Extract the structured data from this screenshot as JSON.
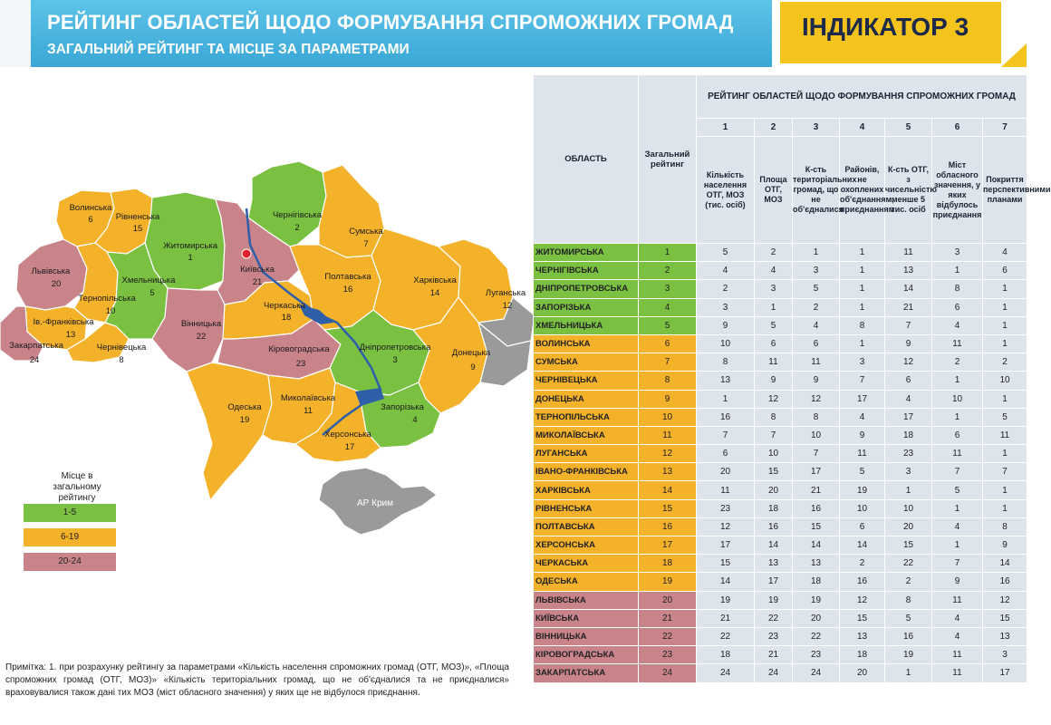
{
  "header": {
    "title": "РЕЙТИНГ ОБЛАСТЕЙ ЩОДО ФОРМУВАННЯ СПРОМОЖНИХ ГРОМАД",
    "subtitle": "ЗАГАЛЬНИЙ РЕЙТИНГ ТА МІСЦЕ ЗА ПАРАМЕТРАМИ",
    "indicator": "ІНДИКАТОР 3"
  },
  "colors": {
    "green": "#7ac142",
    "orange": "#f4b12a",
    "pink": "#c9848a",
    "grey": "#9a9a9a",
    "header_blue": "#3aa7d6",
    "indicator_yellow": "#f4c31c",
    "table_bg": "#dde4ec"
  },
  "map": {
    "regions": [
      {
        "name": "Волинська",
        "rank": "6"
      },
      {
        "name": "Рівненська",
        "rank": "15"
      },
      {
        "name": "Житомирська",
        "rank": "1"
      },
      {
        "name": "Київська",
        "rank": "21"
      },
      {
        "name": "Чернігівська",
        "rank": "2"
      },
      {
        "name": "Сумська",
        "rank": "7"
      },
      {
        "name": "Львівська",
        "rank": "20"
      },
      {
        "name": "Хмельницька",
        "rank": "5"
      },
      {
        "name": "Тернопільська",
        "rank": "10"
      },
      {
        "name": "Ів.-Франківська",
        "rank": "13"
      },
      {
        "name": "Закарпатська",
        "rank": "24"
      },
      {
        "name": "Чернівецька",
        "rank": "8"
      },
      {
        "name": "Вінницька",
        "rank": "22"
      },
      {
        "name": "Черкаська",
        "rank": "18"
      },
      {
        "name": "Полтавська",
        "rank": "16"
      },
      {
        "name": "Харківська",
        "rank": "14"
      },
      {
        "name": "Луганська",
        "rank": "12"
      },
      {
        "name": "Кіровоградська",
        "rank": "23"
      },
      {
        "name": "Дніпропетровська",
        "rank": "3"
      },
      {
        "name": "Донецька",
        "rank": "9"
      },
      {
        "name": "Одеська",
        "rank": "19"
      },
      {
        "name": "Миколаївська",
        "rank": "11"
      },
      {
        "name": "Запорізька",
        "rank": "4"
      },
      {
        "name": "Херсонська",
        "rank": "17"
      },
      {
        "name": "АР Крим",
        "rank": ""
      }
    ],
    "legend": {
      "title": "Місце в загальному рейтингу",
      "items": [
        {
          "label": "1-5",
          "color": "#7ac142"
        },
        {
          "label": "6-19",
          "color": "#f4b12a"
        },
        {
          "label": "20-24",
          "color": "#c9848a"
        }
      ]
    }
  },
  "note": "Примітка: 1. при розрахунку рейтингу за параметрами «Кількість населення спроможних громад (ОТГ, МОЗ)», «Площа спроможних громад (ОТГ, МОЗ)» «Кількість територіальних громад, що не об'єдналися та не приєдналися» враховувалися також дані тих МОЗ (міст обласного значення) у яких ще не відбулося приєднання.",
  "table": {
    "h_oblast": "ОБЛАСТЬ",
    "h_total": "Загальний рейтинг",
    "h_group": "РЕЙТИНГ ОБЛАСТЕЙ ЩОДО ФОРМУВАННЯ СПРОМОЖНИХ ГРОМАД",
    "col_nums": [
      "1",
      "2",
      "3",
      "4",
      "5",
      "6",
      "7"
    ],
    "col_heads": [
      "Кількість населення ОТГ, МОЗ (тис. осіб)",
      "Площа ОТГ, МОЗ",
      "К-сть територіальних громад, що не об'єдналися",
      "Районів, не охоплених об'єднанням, приєднанням",
      "К-сть ОТГ, з чисельністю менше 5 тис. осіб",
      "Міст обласного значення, у яких відбулось приєднання",
      "Покриття перспективними планами"
    ],
    "rows": [
      {
        "name": "ЖИТОМИРСЬКА",
        "total": "1",
        "v": [
          "5",
          "2",
          "1",
          "1",
          "11",
          "3",
          "4"
        ]
      },
      {
        "name": "ЧЕРНІГІВСЬКА",
        "total": "2",
        "v": [
          "4",
          "4",
          "3",
          "1",
          "13",
          "1",
          "6"
        ]
      },
      {
        "name": "ДНІПРОПЕТРОВСЬКА",
        "total": "3",
        "v": [
          "2",
          "3",
          "5",
          "1",
          "14",
          "8",
          "1"
        ]
      },
      {
        "name": "ЗАПОРІЗЬКА",
        "total": "4",
        "v": [
          "3",
          "1",
          "2",
          "1",
          "21",
          "6",
          "1"
        ]
      },
      {
        "name": "ХМЕЛЬНИЦЬКА",
        "total": "5",
        "v": [
          "9",
          "5",
          "4",
          "8",
          "7",
          "4",
          "1"
        ]
      },
      {
        "name": "ВОЛИНСЬКА",
        "total": "6",
        "v": [
          "10",
          "6",
          "6",
          "1",
          "9",
          "11",
          "1"
        ]
      },
      {
        "name": "СУМСЬКА",
        "total": "7",
        "v": [
          "8",
          "11",
          "11",
          "3",
          "12",
          "2",
          "2"
        ]
      },
      {
        "name": "ЧЕРНІВЕЦЬКА",
        "total": "8",
        "v": [
          "13",
          "9",
          "9",
          "7",
          "6",
          "1",
          "10"
        ]
      },
      {
        "name": "ДОНЕЦЬКА",
        "total": "9",
        "v": [
          "1",
          "12",
          "12",
          "17",
          "4",
          "10",
          "1"
        ]
      },
      {
        "name": "ТЕРНОПІЛЬСЬКА",
        "total": "10",
        "v": [
          "16",
          "8",
          "8",
          "4",
          "17",
          "1",
          "5"
        ]
      },
      {
        "name": "МИКОЛАЇВСЬКА",
        "total": "11",
        "v": [
          "7",
          "7",
          "10",
          "9",
          "18",
          "6",
          "11"
        ]
      },
      {
        "name": "ЛУГАНСЬКА",
        "total": "12",
        "v": [
          "6",
          "10",
          "7",
          "11",
          "23",
          "11",
          "1"
        ]
      },
      {
        "name": "ІВАНО-ФРАНКІВСЬКА",
        "total": "13",
        "v": [
          "20",
          "15",
          "17",
          "5",
          "3",
          "7",
          "7"
        ]
      },
      {
        "name": "ХАРКІВСЬКА",
        "total": "14",
        "v": [
          "11",
          "20",
          "21",
          "19",
          "1",
          "5",
          "1"
        ]
      },
      {
        "name": "РІВНЕНСЬКА",
        "total": "15",
        "v": [
          "23",
          "18",
          "16",
          "10",
          "10",
          "1",
          "1"
        ]
      },
      {
        "name": "ПОЛТАВСЬКА",
        "total": "16",
        "v": [
          "12",
          "16",
          "15",
          "6",
          "20",
          "4",
          "8"
        ]
      },
      {
        "name": "ХЕРСОНСЬКА",
        "total": "17",
        "v": [
          "17",
          "14",
          "14",
          "14",
          "15",
          "1",
          "9"
        ]
      },
      {
        "name": "ЧЕРКАСЬКА",
        "total": "18",
        "v": [
          "15",
          "13",
          "13",
          "2",
          "22",
          "7",
          "14"
        ]
      },
      {
        "name": "ОДЕСЬКА",
        "total": "19",
        "v": [
          "14",
          "17",
          "18",
          "16",
          "2",
          "9",
          "16"
        ]
      },
      {
        "name": "ЛЬВІВСЬКА",
        "total": "20",
        "v": [
          "19",
          "19",
          "19",
          "12",
          "8",
          "11",
          "12"
        ]
      },
      {
        "name": "КИЇВСЬКА",
        "total": "21",
        "v": [
          "21",
          "22",
          "20",
          "15",
          "5",
          "4",
          "15"
        ]
      },
      {
        "name": "ВІННИЦЬКА",
        "total": "22",
        "v": [
          "22",
          "23",
          "22",
          "13",
          "16",
          "4",
          "13"
        ]
      },
      {
        "name": "КІРОВОГРАДСЬКА",
        "total": "23",
        "v": [
          "18",
          "21",
          "23",
          "18",
          "19",
          "11",
          "3"
        ]
      },
      {
        "name": "ЗАКАРПАТСЬКА",
        "total": "24",
        "v": [
          "24",
          "24",
          "24",
          "20",
          "1",
          "11",
          "17"
        ]
      }
    ]
  }
}
